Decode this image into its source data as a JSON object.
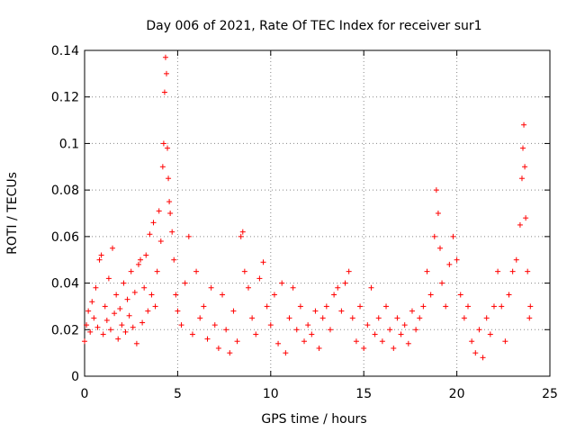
{
  "chart_data": {
    "type": "scatter",
    "title": "Day 006 of 2021, Rate Of TEC Index for receiver sur1",
    "xlabel": "GPS time / hours",
    "ylabel": "ROTI / TECUs",
    "xlim": [
      0,
      25
    ],
    "ylim": [
      0,
      0.14
    ],
    "xticks": [
      0,
      5,
      10,
      15,
      20,
      25
    ],
    "xtick_labels": [
      "0",
      "5",
      "10",
      "15",
      "20",
      "25"
    ],
    "yticks": [
      0,
      0.02,
      0.04,
      0.06,
      0.08,
      0.1,
      0.12,
      0.14
    ],
    "ytick_labels": [
      "0",
      "0.02",
      "0.04",
      "0.06",
      "0.08",
      "0.1",
      "0.12",
      "0.14"
    ],
    "grid": true,
    "marker": "+",
    "marker_color": "#ff0000",
    "series": [
      {
        "name": "ROTI",
        "points": [
          [
            0.0,
            0.015
          ],
          [
            0.1,
            0.022
          ],
          [
            0.2,
            0.028
          ],
          [
            0.3,
            0.019
          ],
          [
            0.4,
            0.032
          ],
          [
            0.5,
            0.025
          ],
          [
            0.6,
            0.038
          ],
          [
            0.7,
            0.021
          ],
          [
            0.8,
            0.05
          ],
          [
            0.9,
            0.052
          ],
          [
            1.0,
            0.018
          ],
          [
            1.1,
            0.03
          ],
          [
            1.2,
            0.024
          ],
          [
            1.3,
            0.042
          ],
          [
            1.4,
            0.02
          ],
          [
            1.5,
            0.055
          ],
          [
            1.6,
            0.027
          ],
          [
            1.7,
            0.035
          ],
          [
            1.8,
            0.016
          ],
          [
            1.9,
            0.029
          ],
          [
            2.0,
            0.022
          ],
          [
            2.1,
            0.04
          ],
          [
            2.2,
            0.019
          ],
          [
            2.3,
            0.033
          ],
          [
            2.4,
            0.026
          ],
          [
            2.5,
            0.045
          ],
          [
            2.6,
            0.021
          ],
          [
            2.7,
            0.036
          ],
          [
            2.8,
            0.014
          ],
          [
            2.9,
            0.048
          ],
          [
            3.0,
            0.05
          ],
          [
            3.1,
            0.023
          ],
          [
            3.2,
            0.038
          ],
          [
            3.3,
            0.052
          ],
          [
            3.4,
            0.028
          ],
          [
            3.5,
            0.061
          ],
          [
            3.6,
            0.035
          ],
          [
            3.7,
            0.066
          ],
          [
            3.8,
            0.03
          ],
          [
            3.9,
            0.045
          ],
          [
            4.0,
            0.071
          ],
          [
            4.1,
            0.058
          ],
          [
            4.2,
            0.09
          ],
          [
            4.25,
            0.1
          ],
          [
            4.3,
            0.122
          ],
          [
            4.35,
            0.137
          ],
          [
            4.4,
            0.13
          ],
          [
            4.45,
            0.098
          ],
          [
            4.5,
            0.085
          ],
          [
            4.55,
            0.075
          ],
          [
            4.6,
            0.07
          ],
          [
            4.7,
            0.062
          ],
          [
            4.8,
            0.05
          ],
          [
            4.9,
            0.035
          ],
          [
            5.0,
            0.028
          ],
          [
            5.2,
            0.022
          ],
          [
            5.4,
            0.04
          ],
          [
            5.6,
            0.06
          ],
          [
            5.8,
            0.018
          ],
          [
            6.0,
            0.045
          ],
          [
            6.2,
            0.025
          ],
          [
            6.4,
            0.03
          ],
          [
            6.6,
            0.016
          ],
          [
            6.8,
            0.038
          ],
          [
            7.0,
            0.022
          ],
          [
            7.2,
            0.012
          ],
          [
            7.4,
            0.035
          ],
          [
            7.6,
            0.02
          ],
          [
            7.8,
            0.01
          ],
          [
            8.0,
            0.028
          ],
          [
            8.2,
            0.015
          ],
          [
            8.4,
            0.06
          ],
          [
            8.5,
            0.062
          ],
          [
            8.6,
            0.045
          ],
          [
            8.8,
            0.038
          ],
          [
            9.0,
            0.025
          ],
          [
            9.2,
            0.018
          ],
          [
            9.4,
            0.042
          ],
          [
            9.6,
            0.049
          ],
          [
            9.8,
            0.03
          ],
          [
            10.0,
            0.022
          ],
          [
            10.2,
            0.035
          ],
          [
            10.4,
            0.014
          ],
          [
            10.6,
            0.04
          ],
          [
            10.8,
            0.01
          ],
          [
            11.0,
            0.025
          ],
          [
            11.2,
            0.038
          ],
          [
            11.4,
            0.02
          ],
          [
            11.6,
            0.03
          ],
          [
            11.8,
            0.015
          ],
          [
            12.0,
            0.022
          ],
          [
            12.2,
            0.018
          ],
          [
            12.4,
            0.028
          ],
          [
            12.6,
            0.012
          ],
          [
            12.8,
            0.025
          ],
          [
            13.0,
            0.03
          ],
          [
            13.2,
            0.02
          ],
          [
            13.4,
            0.035
          ],
          [
            13.6,
            0.038
          ],
          [
            13.8,
            0.028
          ],
          [
            14.0,
            0.04
          ],
          [
            14.2,
            0.045
          ],
          [
            14.4,
            0.025
          ],
          [
            14.6,
            0.015
          ],
          [
            14.8,
            0.03
          ],
          [
            15.0,
            0.012
          ],
          [
            15.2,
            0.022
          ],
          [
            15.4,
            0.038
          ],
          [
            15.6,
            0.018
          ],
          [
            15.8,
            0.025
          ],
          [
            16.0,
            0.015
          ],
          [
            16.2,
            0.03
          ],
          [
            16.4,
            0.02
          ],
          [
            16.6,
            0.012
          ],
          [
            16.8,
            0.025
          ],
          [
            17.0,
            0.018
          ],
          [
            17.2,
            0.022
          ],
          [
            17.4,
            0.014
          ],
          [
            17.6,
            0.028
          ],
          [
            17.8,
            0.02
          ],
          [
            18.0,
            0.025
          ],
          [
            18.2,
            0.03
          ],
          [
            18.4,
            0.045
          ],
          [
            18.6,
            0.035
          ],
          [
            18.8,
            0.06
          ],
          [
            18.9,
            0.08
          ],
          [
            19.0,
            0.07
          ],
          [
            19.1,
            0.055
          ],
          [
            19.2,
            0.04
          ],
          [
            19.4,
            0.03
          ],
          [
            19.6,
            0.048
          ],
          [
            19.8,
            0.06
          ],
          [
            20.0,
            0.05
          ],
          [
            20.2,
            0.035
          ],
          [
            20.4,
            0.025
          ],
          [
            20.6,
            0.03
          ],
          [
            20.8,
            0.015
          ],
          [
            21.0,
            0.01
          ],
          [
            21.2,
            0.02
          ],
          [
            21.4,
            0.008
          ],
          [
            21.6,
            0.025
          ],
          [
            21.8,
            0.018
          ],
          [
            22.0,
            0.03
          ],
          [
            22.2,
            0.045
          ],
          [
            22.4,
            0.03
          ],
          [
            22.6,
            0.015
          ],
          [
            22.8,
            0.035
          ],
          [
            23.0,
            0.045
          ],
          [
            23.2,
            0.05
          ],
          [
            23.4,
            0.065
          ],
          [
            23.5,
            0.085
          ],
          [
            23.55,
            0.098
          ],
          [
            23.6,
            0.108
          ],
          [
            23.65,
            0.09
          ],
          [
            23.7,
            0.068
          ],
          [
            23.8,
            0.045
          ],
          [
            23.9,
            0.025
          ],
          [
            23.95,
            0.03
          ]
        ]
      }
    ]
  }
}
